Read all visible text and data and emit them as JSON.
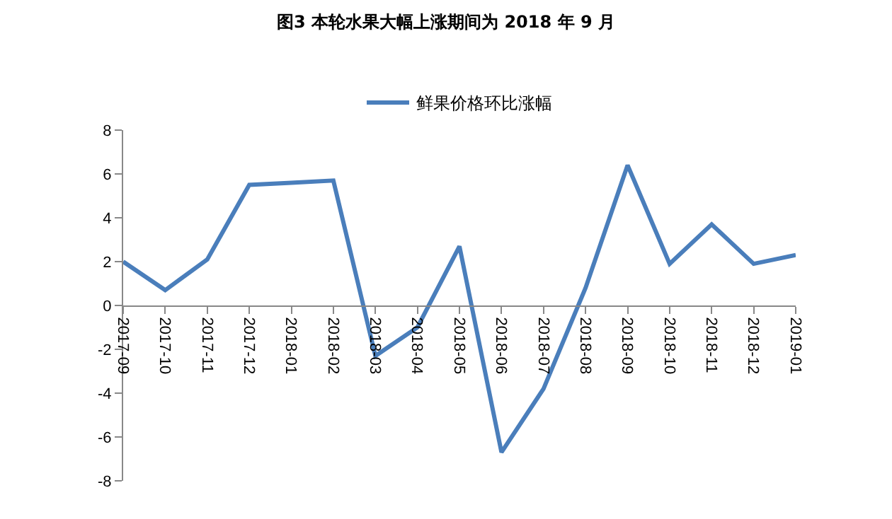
{
  "chart_data": {
    "type": "line",
    "title": "图3 本轮水果大幅上涨期间为 2018 年 9 月",
    "categories": [
      "2017-09",
      "2017-10",
      "2017-11",
      "2017-12",
      "2018-01",
      "2018-02",
      "2018-03",
      "2018-04",
      "2018-05",
      "2018-06",
      "2018-07",
      "2018-08",
      "2018-09",
      "2018-10",
      "2018-11",
      "2018-12",
      "2019-01"
    ],
    "series": [
      {
        "name": "鲜果价格环比涨幅",
        "color": "#4a7ebb",
        "values": [
          2.0,
          0.7,
          2.1,
          5.5,
          5.6,
          5.7,
          -2.3,
          -1.0,
          2.7,
          -6.7,
          -3.8,
          0.8,
          6.4,
          1.9,
          3.7,
          1.9,
          2.3
        ]
      }
    ],
    "ylim": [
      -8,
      8
    ],
    "yticks": [
      -8,
      -6,
      -4,
      -2,
      0,
      2,
      4,
      6,
      8
    ],
    "grid": false,
    "legend": "top",
    "marker": "none",
    "line_style": "solid"
  }
}
